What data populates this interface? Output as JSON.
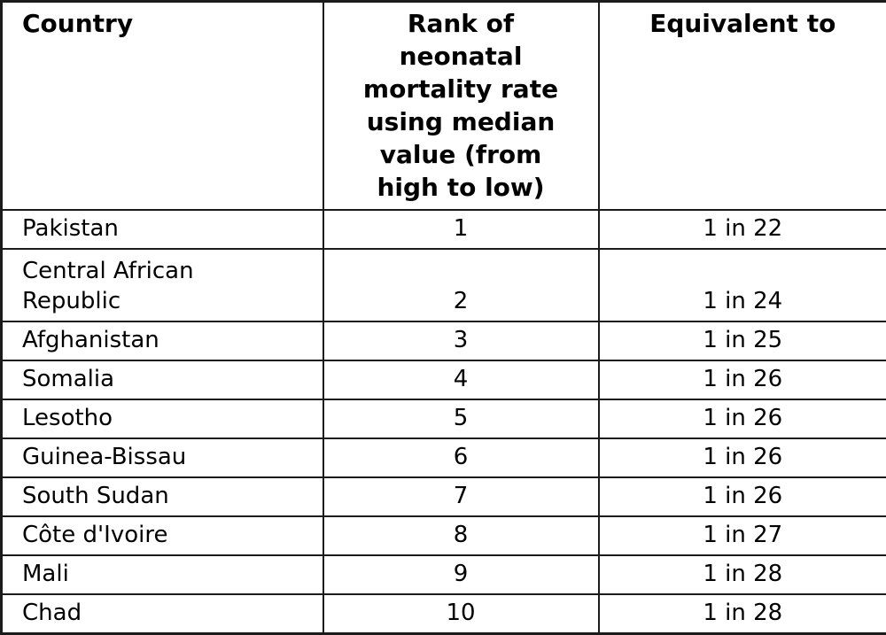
{
  "table": {
    "header": {
      "country": "Country",
      "rank_lines": [
        "Rank of",
        "neonatal",
        "mortality rate",
        "using median",
        "value (from",
        "high to low)"
      ],
      "equivalent": "Equivalent to"
    },
    "rows": [
      {
        "country": "Pakistan",
        "rank": "1",
        "equivalent": "1 in 22"
      },
      {
        "country": "Central African Republic",
        "rank": "2",
        "equivalent": "1 in 24"
      },
      {
        "country": "Afghanistan",
        "rank": "3",
        "equivalent": "1 in 25"
      },
      {
        "country": "Somalia",
        "rank": "4",
        "equivalent": "1 in 26"
      },
      {
        "country": "Lesotho",
        "rank": "5",
        "equivalent": "1 in 26"
      },
      {
        "country": "Guinea-Bissau",
        "rank": "6",
        "equivalent": "1 in 26"
      },
      {
        "country": "South Sudan",
        "rank": "7",
        "equivalent": "1 in 26"
      },
      {
        "country": "Côte d'Ivoire",
        "rank": "8",
        "equivalent": "1 in 27"
      },
      {
        "country": "Mali",
        "rank": "9",
        "equivalent": "1 in 28"
      },
      {
        "country": "Chad",
        "rank": "10",
        "equivalent": "1 in 28"
      }
    ],
    "colors": {
      "border": "#1b1b1b",
      "text": "#000000",
      "background": "#ffffff"
    }
  }
}
